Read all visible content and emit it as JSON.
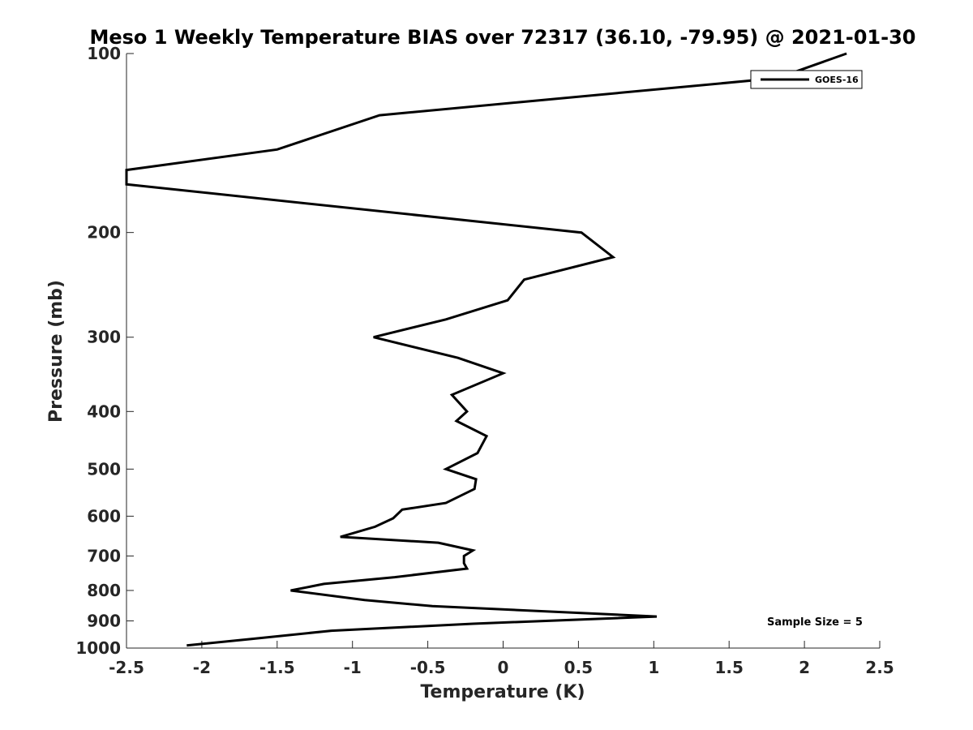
{
  "chart_data": {
    "type": "line",
    "title": "Meso 1 Weekly Temperature BIAS over 72317 (36.10, -79.95) @ 2021-01-30",
    "xlabel": "Temperature (K)",
    "ylabel": "Pressure (mb)",
    "xlim": [
      -2.5,
      2.5
    ],
    "ylim": [
      1000,
      100
    ],
    "y_scale": "log",
    "y_reversed": true,
    "xticks": [
      -2.5,
      -2,
      -1.5,
      -1,
      -0.5,
      0,
      0.5,
      1,
      1.5,
      2,
      2.5
    ],
    "xtick_labels": [
      "-2.5",
      "-2",
      "-1.5",
      "-1",
      "-0.5",
      "0",
      "0.5",
      "1",
      "1.5",
      "2",
      "2.5"
    ],
    "yticks": [
      100,
      200,
      300,
      400,
      500,
      600,
      700,
      800,
      900,
      1000
    ],
    "ytick_labels": [
      "100",
      "200",
      "300",
      "400",
      "500",
      "600",
      "700",
      "800",
      "900",
      "1000"
    ],
    "grid": false,
    "legend_position": "top-right",
    "annotation": "Sample Size = 5",
    "series": [
      {
        "name": "GOES-16",
        "color": "#000000",
        "x": [
          2.28,
          1.82,
          -0.82,
          -1.5,
          -2.5,
          -2.5,
          0.52,
          0.73,
          0.14,
          0.03,
          -0.38,
          -0.86,
          -0.3,
          0.0,
          -0.34,
          -0.24,
          -0.31,
          -0.11,
          -0.17,
          -0.38,
          -0.18,
          -0.19,
          -0.38,
          -0.67,
          -0.73,
          -0.85,
          -1.08,
          -0.43,
          -0.2,
          -0.26,
          -0.26,
          -0.24,
          -0.72,
          -1.19,
          -1.41,
          -0.92,
          -0.47,
          1.02,
          -0.2,
          -1.14,
          -1.67,
          -2.1
        ],
        "y": [
          100,
          110,
          127,
          145,
          157,
          166,
          200,
          220,
          240,
          260,
          280,
          300,
          325,
          345,
          375,
          400,
          415,
          440,
          470,
          500,
          520,
          540,
          570,
          585,
          605,
          625,
          650,
          665,
          685,
          700,
          720,
          735,
          760,
          780,
          800,
          830,
          850,
          885,
          910,
          935,
          965,
          990
        ]
      }
    ]
  }
}
